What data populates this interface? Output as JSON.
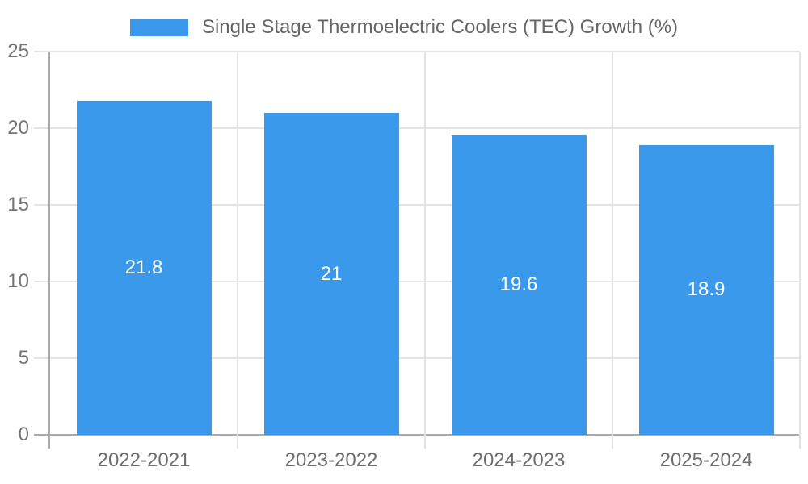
{
  "chart_data": {
    "type": "bar",
    "title": "",
    "legend_label": "Single Stage Thermoelectric Coolers (TEC) Growth (%)",
    "categories": [
      "2022-2021",
      "2023-2022",
      "2024-2023",
      "2025-2024"
    ],
    "values": [
      21.8,
      21,
      19.6,
      18.9
    ],
    "value_labels": [
      "21.8",
      "21",
      "19.6",
      "18.9"
    ],
    "xlabel": "",
    "ylabel": "",
    "ylim": [
      0,
      25
    ],
    "yticks": [
      0,
      5,
      10,
      15,
      20,
      25
    ],
    "grid": true,
    "legend_position": "top-center"
  },
  "colors": {
    "bar": "#3B99EC",
    "grid": "#E3E3E3",
    "axis_line": "#AAAAAA",
    "zero_line": "#AAAAAA",
    "y_tick_label": "#757575",
    "x_tick_label": "#6E6E6E",
    "legend_text": "#666666",
    "value_label": "#FFFFFF",
    "background": "#FFFFFF"
  }
}
